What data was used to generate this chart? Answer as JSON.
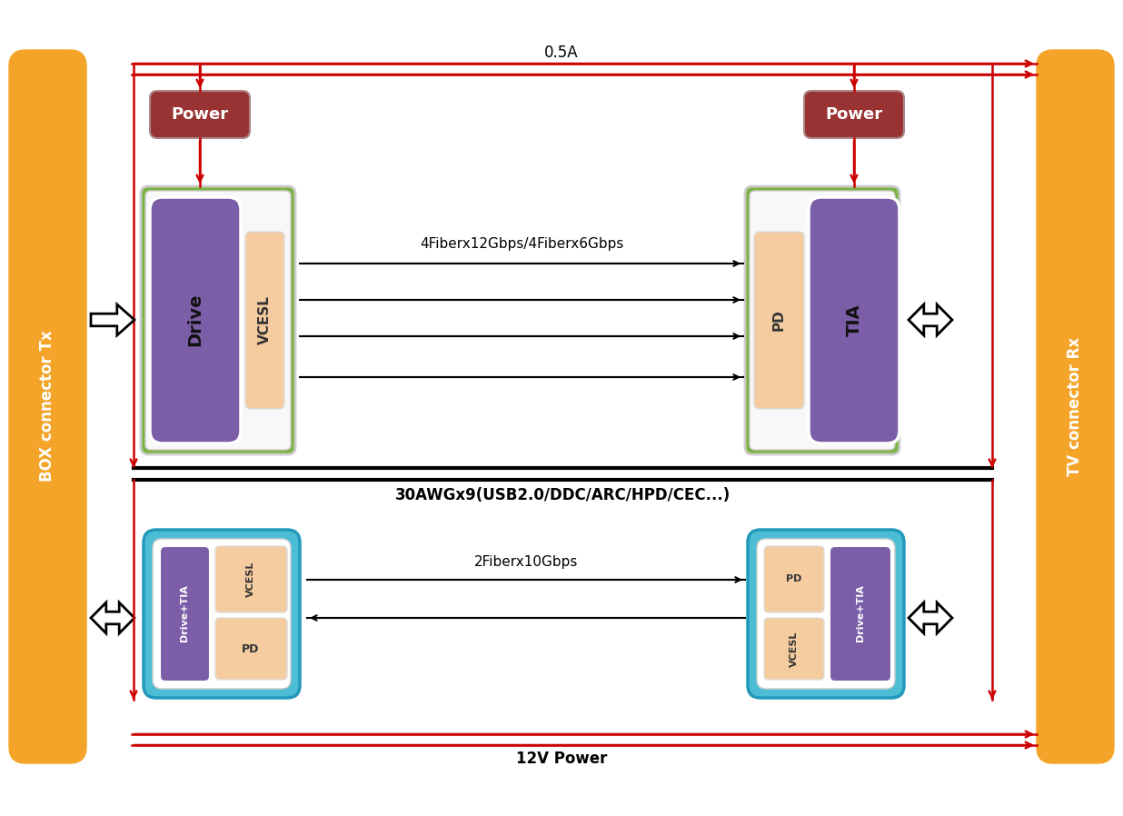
{
  "bg_color": "#ffffff",
  "orange_color": "#F4A428",
  "green_color": "#7CB342",
  "purple_color": "#7B5EA7",
  "peach_color": "#F5CBA0",
  "red_dark": "#993333",
  "cyan_color": "#4DBDD6",
  "cyan_border": "#2299BB",
  "red_arrow": "#CC0000",
  "black": "#000000",
  "white": "#ffffff",
  "left_connector_label": "BOX connector Tx",
  "right_connector_label": "TV connector Rx",
  "top_label_0_5A": "0.5A",
  "signal_label": "4Fiberx12Gbps/4Fiberx6Gbps",
  "usb_label": "30AWGx9(USB2.0/DDC/ARC/HPD/CEC...)",
  "fiber2_label": "2Fiberx10Gbps",
  "power12v_label": "12V Power",
  "power_label": "Power"
}
